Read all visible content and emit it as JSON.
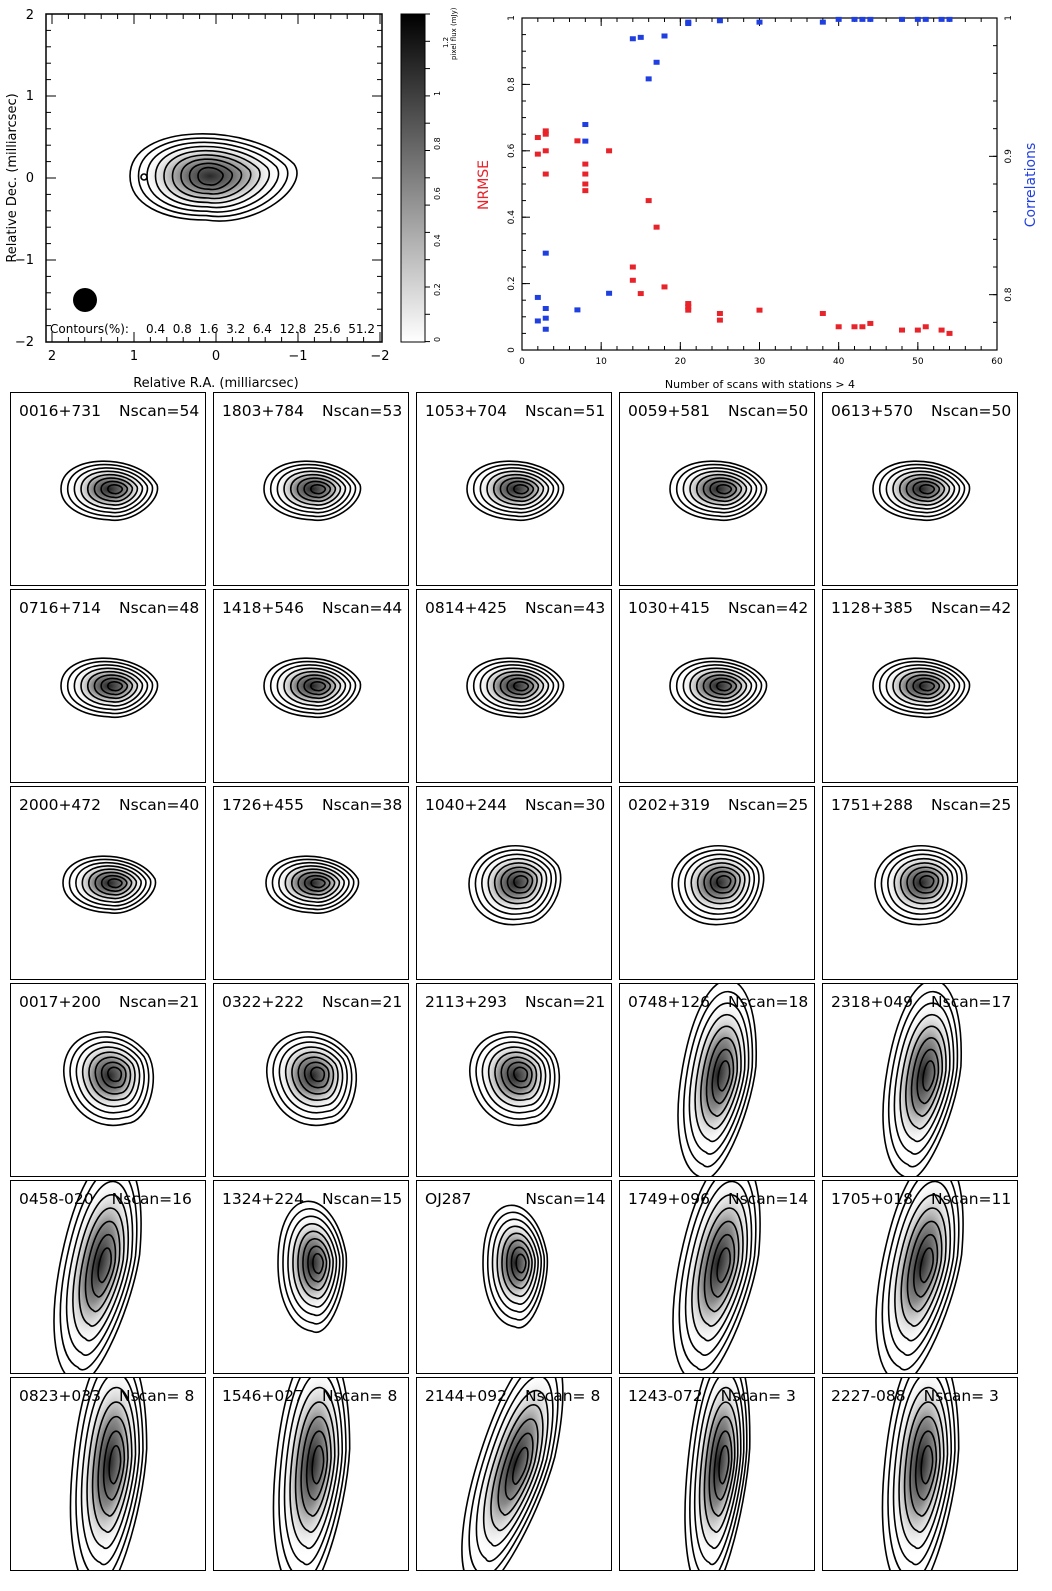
{
  "top_left": {
    "ylabel": "Relative Dec. (milliarcsec)",
    "xlabel": "Relative R.A. (milliarcsec)",
    "y_ticks": [
      "2",
      "1",
      "0",
      "−1",
      "−2"
    ],
    "x_ticks": [
      "2",
      "1",
      "0",
      "−1",
      "−2"
    ],
    "contours_label": "Contours(%):",
    "contours_values": "0.4  0.8  1.6  3.2  6.4  12.8  25.6  51.2",
    "colorbar_title": "1.2\npixel flux (mJy)",
    "colorbar_ticks": [
      "1.2",
      "1",
      "0.8",
      "0.6",
      "0.4",
      "0.2",
      "0"
    ]
  },
  "top_right": {
    "ylabel_left": "NRMSE",
    "ylabel_right": "Correlations",
    "xlabel": "Number of scans with stations > 4",
    "x_ticks": [
      "0",
      "10",
      "20",
      "30",
      "40",
      "50",
      "60"
    ],
    "y_left_ticks": [
      "0",
      "0.2",
      "0.4",
      "0.6",
      "0.8",
      "1"
    ],
    "y_right_ticks": [
      "0.8",
      "0.9",
      "1"
    ]
  },
  "panels": [
    {
      "name": "0016+731",
      "nscan": "Nscan=54"
    },
    {
      "name": "1803+784",
      "nscan": "Nscan=53"
    },
    {
      "name": "1053+704",
      "nscan": "Nscan=51"
    },
    {
      "name": "0059+581",
      "nscan": "Nscan=50"
    },
    {
      "name": "0613+570",
      "nscan": "Nscan=50"
    },
    {
      "name": "0716+714",
      "nscan": "Nscan=48"
    },
    {
      "name": "1418+546",
      "nscan": "Nscan=44"
    },
    {
      "name": "0814+425",
      "nscan": "Nscan=43"
    },
    {
      "name": "1030+415",
      "nscan": "Nscan=42"
    },
    {
      "name": "1128+385",
      "nscan": "Nscan=42"
    },
    {
      "name": "2000+472",
      "nscan": "Nscan=40"
    },
    {
      "name": "1726+455",
      "nscan": "Nscan=38"
    },
    {
      "name": "1040+244",
      "nscan": "Nscan=30"
    },
    {
      "name": "0202+319",
      "nscan": "Nscan=25"
    },
    {
      "name": "1751+288",
      "nscan": "Nscan=25"
    },
    {
      "name": "0017+200",
      "nscan": "Nscan=21"
    },
    {
      "name": "0322+222",
      "nscan": "Nscan=21"
    },
    {
      "name": "2113+293",
      "nscan": "Nscan=21"
    },
    {
      "name": "0748+126",
      "nscan": "Nscan=18"
    },
    {
      "name": "2318+049",
      "nscan": "Nscan=17"
    },
    {
      "name": "0458-020",
      "nscan": "Nscan=16"
    },
    {
      "name": "1324+224",
      "nscan": "Nscan=15"
    },
    {
      "name": "OJ287",
      "nscan": "Nscan=14"
    },
    {
      "name": "1749+096",
      "nscan": "Nscan=14"
    },
    {
      "name": "1705+018",
      "nscan": "Nscan=11"
    },
    {
      "name": "0823+033",
      "nscan": "Nscan= 8"
    },
    {
      "name": "1546+027",
      "nscan": "Nscan= 8"
    },
    {
      "name": "2144+092",
      "nscan": "Nscan= 8"
    },
    {
      "name": "1243-072",
      "nscan": "Nscan= 3"
    },
    {
      "name": "2227-088",
      "nscan": "Nscan= 3"
    }
  ],
  "chart_data": [
    {
      "type": "heatmap",
      "description_id": "reconstructed image with contours",
      "xlabel": "Relative R.A. (milliarcsec)",
      "ylabel": "Relative Dec. (milliarcsec)",
      "xlim": [
        2,
        -2
      ],
      "ylim": [
        -2,
        2
      ],
      "contours_percent": [
        0.4,
        0.8,
        1.6,
        3.2,
        6.4,
        12.8,
        25.6,
        51.2
      ],
      "colorbar_label": "pixel flux (mJy)",
      "colorbar_range": [
        0,
        1.2
      ]
    },
    {
      "type": "scatter",
      "xlabel": "Number of scans with stations > 4",
      "ylabel": "NRMSE",
      "y2label": "Correlations",
      "xlim": [
        0,
        60
      ],
      "ylim": [
        0,
        1
      ],
      "y2lim": [
        0.76,
        1.0
      ],
      "series": [
        {
          "name": "NRMSE",
          "color": "#e8232a",
          "points": [
            [
              2,
              0.64
            ],
            [
              2,
              0.59
            ],
            [
              3,
              0.66
            ],
            [
              3,
              0.65
            ],
            [
              3,
              0.6
            ],
            [
              3,
              0.53
            ],
            [
              7,
              0.63
            ],
            [
              8,
              0.56
            ],
            [
              8,
              0.53
            ],
            [
              8,
              0.5
            ],
            [
              8,
              0.48
            ],
            [
              11,
              0.6
            ],
            [
              14,
              0.25
            ],
            [
              14,
              0.21
            ],
            [
              15,
              0.17
            ],
            [
              16,
              0.45
            ],
            [
              17,
              0.37
            ],
            [
              18,
              0.19
            ],
            [
              21,
              0.14
            ],
            [
              21,
              0.13
            ],
            [
              21,
              0.12
            ],
            [
              25,
              0.11
            ],
            [
              25,
              0.09
            ],
            [
              30,
              0.12
            ],
            [
              38,
              0.11
            ],
            [
              40,
              0.07
            ],
            [
              42,
              0.07
            ],
            [
              43,
              0.07
            ],
            [
              44,
              0.08
            ],
            [
              48,
              0.06
            ],
            [
              50,
              0.06
            ],
            [
              51,
              0.07
            ],
            [
              53,
              0.06
            ],
            [
              54,
              0.05
            ]
          ]
        },
        {
          "name": "Correlations",
          "color": "#1f3fe0",
          "points": [
            [
              2,
              0.798
            ],
            [
              2,
              0.781
            ],
            [
              3,
              0.83
            ],
            [
              3,
              0.79
            ],
            [
              3,
              0.783
            ],
            [
              3,
              0.775
            ],
            [
              7,
              0.789
            ],
            [
              8,
              0.923
            ],
            [
              8,
              0.911
            ],
            [
              11,
              0.801
            ],
            [
              14,
              0.985
            ],
            [
              15,
              0.986
            ],
            [
              16,
              0.956
            ],
            [
              17,
              0.968
            ],
            [
              18,
              0.987
            ],
            [
              21,
              0.997
            ],
            [
              21,
              0.996
            ],
            [
              25,
              0.998
            ],
            [
              30,
              0.997
            ],
            [
              38,
              0.997
            ],
            [
              40,
              0.999
            ],
            [
              42,
              0.999
            ],
            [
              43,
              0.999
            ],
            [
              44,
              0.999
            ],
            [
              48,
              0.999
            ],
            [
              50,
              0.999
            ],
            [
              51,
              0.999
            ],
            [
              53,
              0.999
            ],
            [
              54,
              0.999
            ]
          ]
        }
      ]
    }
  ]
}
